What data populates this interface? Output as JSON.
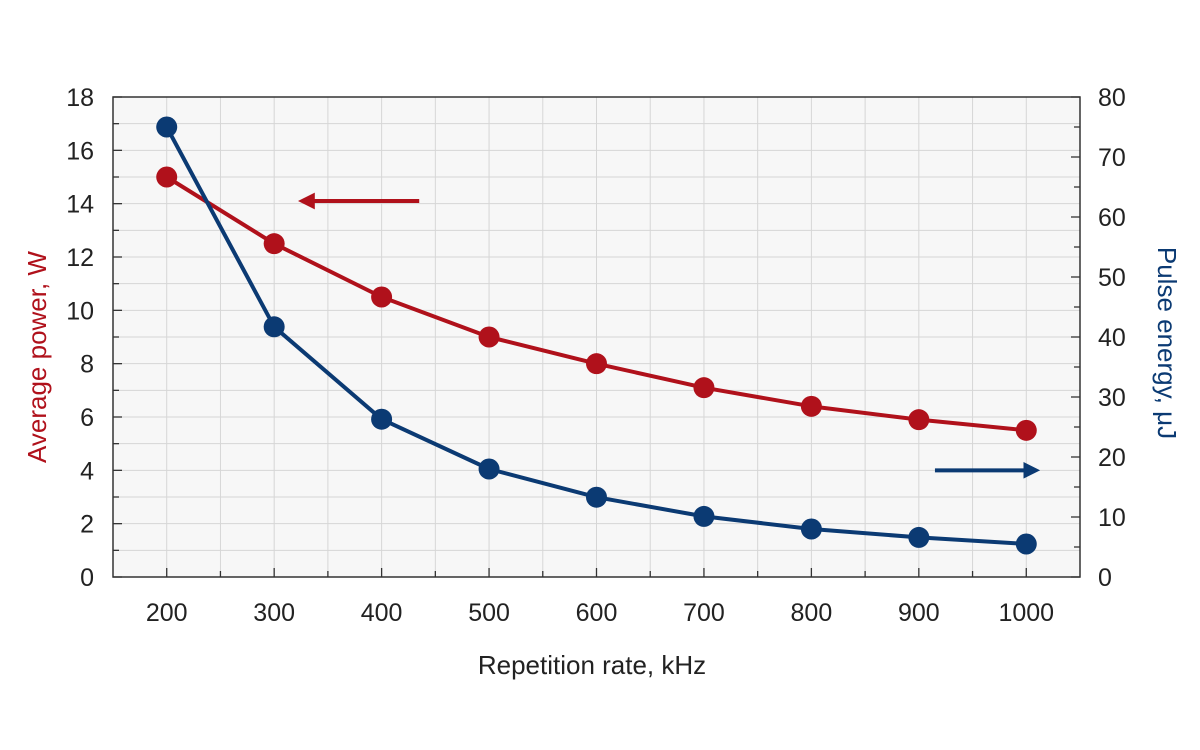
{
  "colors": {
    "power": "#b0111b",
    "energy": "#0b3a73",
    "grid": "#d6d6d6",
    "plot_bg": "#f7f7f7",
    "axis": "#333333"
  },
  "chart_data": {
    "type": "line",
    "xlabel": "Repetition rate, kHz",
    "ylabel_left": "Average power, W",
    "ylabel_right": "Pulse energy, μJ",
    "x_ticks": [
      200,
      300,
      400,
      500,
      600,
      700,
      800,
      900,
      1000
    ],
    "xlim": [
      150,
      1050
    ],
    "ylim_left": [
      0,
      18
    ],
    "ylim_right": [
      0,
      80
    ],
    "y_ticks_left": [
      0,
      2,
      4,
      6,
      8,
      10,
      12,
      14,
      16,
      18
    ],
    "y_ticks_right": [
      0,
      10,
      20,
      30,
      40,
      50,
      60,
      70,
      80
    ],
    "grid": true,
    "series": [
      {
        "axis": "left",
        "color": "#b0111b",
        "x": [
          200,
          300,
          400,
          500,
          600,
          700,
          800,
          900,
          1000
        ],
        "y": [
          15,
          12.5,
          10.5,
          9,
          8,
          7.1,
          6.4,
          5.9,
          5.5
        ]
      },
      {
        "axis": "right",
        "color": "#0b3a73",
        "x": [
          200,
          300,
          400,
          500,
          600,
          700,
          800,
          900,
          1000
        ],
        "y": [
          75,
          41.7,
          26.3,
          18,
          13.3,
          10.1,
          8,
          6.6,
          5.5
        ]
      }
    ],
    "annotations": [
      {
        "type": "arrow",
        "direction": "left",
        "points_to": "left-axis",
        "color": "#b0111b",
        "x_from": 435,
        "x_to": 330,
        "y_left": 14.1
      },
      {
        "type": "arrow",
        "direction": "right",
        "points_to": "right-axis",
        "color": "#0b3a73",
        "x_from": 915,
        "x_to": 1005,
        "y_left": 4.0
      }
    ]
  }
}
